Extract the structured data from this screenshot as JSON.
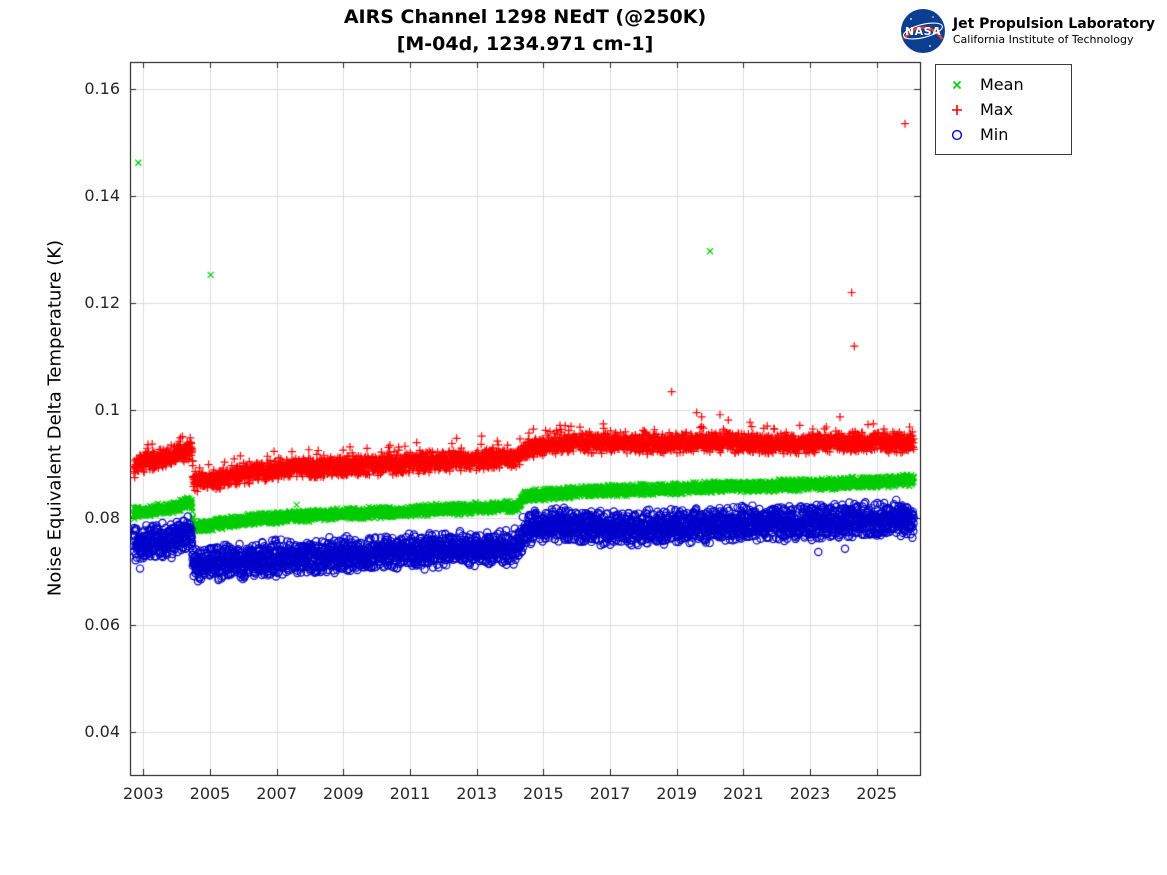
{
  "header": {
    "jpl": {
      "nasa_logo_text": "NASA",
      "line1": "Jet Propulsion Laboratory",
      "line2": "California Institute of Technology"
    }
  },
  "chart_data": {
    "type": "scatter",
    "title": "AIRS Channel 1298 NEdT (@250K)",
    "subtitle": "[M-04d, 1234.971 cm-1]",
    "xlabel": "",
    "ylabel": "Noise Equivalent Delta Temperature (K)",
    "xlim": [
      2002.6,
      2026.3
    ],
    "ylim": [
      0.032,
      0.165
    ],
    "grid": true,
    "legend_position": "outside-top-right",
    "xticks": [
      2003,
      2005,
      2007,
      2009,
      2011,
      2013,
      2015,
      2017,
      2019,
      2021,
      2023,
      2025
    ],
    "xtick_labels": [
      "2003",
      "2005",
      "2007",
      "2009",
      "2011",
      "2013",
      "2015",
      "2017",
      "2019",
      "2021",
      "2023",
      "2025"
    ],
    "yticks": [
      0.04,
      0.06,
      0.08,
      0.1,
      0.12,
      0.14,
      0.16
    ],
    "ytick_labels": [
      "0.04",
      "0.06",
      "0.08",
      "0.1",
      "0.12",
      "0.14",
      "0.16"
    ],
    "sample_start": 2002.72,
    "sample_end": 2026.12,
    "sample_step": 0.006,
    "series": [
      {
        "name": "Mean",
        "marker": "x",
        "color": "#00cc00",
        "noise": 0.0008,
        "anchors": [
          [
            2002.75,
            0.0808
          ],
          [
            2003.5,
            0.0815
          ],
          [
            2004.0,
            0.082
          ],
          [
            2004.45,
            0.0833
          ],
          [
            2004.5,
            0.0783
          ],
          [
            2005.2,
            0.0788
          ],
          [
            2006,
            0.0795
          ],
          [
            2007,
            0.08
          ],
          [
            2008,
            0.0804
          ],
          [
            2009,
            0.0807
          ],
          [
            2010,
            0.0809
          ],
          [
            2011,
            0.0812
          ],
          [
            2012,
            0.0815
          ],
          [
            2013,
            0.0818
          ],
          [
            2014.25,
            0.0821
          ],
          [
            2014.45,
            0.084
          ],
          [
            2015.5,
            0.0846
          ],
          [
            2016.5,
            0.0849
          ],
          [
            2018,
            0.0852
          ],
          [
            2019,
            0.0854
          ],
          [
            2020,
            0.0857
          ],
          [
            2021,
            0.0858
          ],
          [
            2022,
            0.086
          ],
          [
            2023,
            0.0862
          ],
          [
            2024,
            0.0864
          ],
          [
            2025,
            0.0868
          ],
          [
            2026.1,
            0.087
          ]
        ],
        "outliers": [
          [
            2002.85,
            0.1462
          ],
          [
            2005.02,
            0.1253
          ],
          [
            2020.0,
            0.1297
          ],
          [
            2007.6,
            0.0824
          ],
          [
            2025.9,
            0.088
          ]
        ]
      },
      {
        "name": "Max",
        "marker": "+",
        "color": "#ff0000",
        "noise": 0.0014,
        "spike_p": 0.05,
        "spike_amp": 0.0035,
        "anchors": [
          [
            2002.75,
            0.0895
          ],
          [
            2003.2,
            0.0905
          ],
          [
            2003.8,
            0.0912
          ],
          [
            2004.0,
            0.0918
          ],
          [
            2004.45,
            0.0928
          ],
          [
            2004.5,
            0.0868
          ],
          [
            2005.2,
            0.0872
          ],
          [
            2006,
            0.0882
          ],
          [
            2007,
            0.089
          ],
          [
            2008,
            0.0893
          ],
          [
            2009,
            0.0895
          ],
          [
            2010,
            0.0898
          ],
          [
            2011,
            0.0902
          ],
          [
            2012,
            0.0905
          ],
          [
            2013,
            0.0908
          ],
          [
            2014.25,
            0.0912
          ],
          [
            2014.45,
            0.0928
          ],
          [
            2015.5,
            0.0938
          ],
          [
            2016.5,
            0.094
          ],
          [
            2018,
            0.0938
          ],
          [
            2019,
            0.094
          ],
          [
            2020,
            0.0942
          ],
          [
            2021,
            0.094
          ],
          [
            2022,
            0.0938
          ],
          [
            2023,
            0.0938
          ],
          [
            2024,
            0.0942
          ],
          [
            2025,
            0.0942
          ],
          [
            2026.1,
            0.094
          ]
        ],
        "outliers": [
          [
            2018.85,
            0.1035
          ],
          [
            2024.25,
            0.122
          ],
          [
            2024.33,
            0.112
          ],
          [
            2025.85,
            0.1535
          ],
          [
            2019.6,
            0.0996
          ],
          [
            2019.75,
            0.0988
          ],
          [
            2020.3,
            0.0992
          ],
          [
            2020.55,
            0.0982
          ],
          [
            2021.2,
            0.0978
          ],
          [
            2015.5,
            0.0972
          ],
          [
            2016.8,
            0.0975
          ],
          [
            2013.15,
            0.0952
          ],
          [
            2012.4,
            0.0948
          ],
          [
            2011.2,
            0.094
          ],
          [
            2010.4,
            0.0935
          ],
          [
            2009.2,
            0.0932
          ],
          [
            2023.9,
            0.0988
          ],
          [
            2024.9,
            0.0975
          ]
        ]
      },
      {
        "name": "Min",
        "marker": "o",
        "color": "#0000cc",
        "noise": 0.0024,
        "spike_p": 0.05,
        "spike_amp": -0.0028,
        "anchors": [
          [
            2002.75,
            0.075
          ],
          [
            2003.5,
            0.0756
          ],
          [
            2004.0,
            0.0762
          ],
          [
            2004.45,
            0.0775
          ],
          [
            2004.5,
            0.0713
          ],
          [
            2005.2,
            0.0716
          ],
          [
            2006,
            0.072
          ],
          [
            2007,
            0.0724
          ],
          [
            2008,
            0.0727
          ],
          [
            2009,
            0.073
          ],
          [
            2010,
            0.0734
          ],
          [
            2011,
            0.0737
          ],
          [
            2012,
            0.074
          ],
          [
            2013,
            0.0743
          ],
          [
            2014.25,
            0.0747
          ],
          [
            2014.45,
            0.078
          ],
          [
            2015.5,
            0.0786
          ],
          [
            2016.5,
            0.0783
          ],
          [
            2017.5,
            0.0778
          ],
          [
            2018.5,
            0.0782
          ],
          [
            2019.5,
            0.0786
          ],
          [
            2020.5,
            0.0788
          ],
          [
            2021.5,
            0.079
          ],
          [
            2022.5,
            0.079
          ],
          [
            2023.5,
            0.0792
          ],
          [
            2024.5,
            0.0796
          ],
          [
            2025.5,
            0.0799
          ],
          [
            2026.1,
            0.0797
          ]
        ],
        "outliers": [
          [
            2002.9,
            0.0705
          ],
          [
            2005.0,
            0.0694
          ],
          [
            2005.6,
            0.0696
          ],
          [
            2006.3,
            0.0698
          ],
          [
            2023.25,
            0.0736
          ],
          [
            2024.05,
            0.0742
          ]
        ]
      }
    ]
  }
}
